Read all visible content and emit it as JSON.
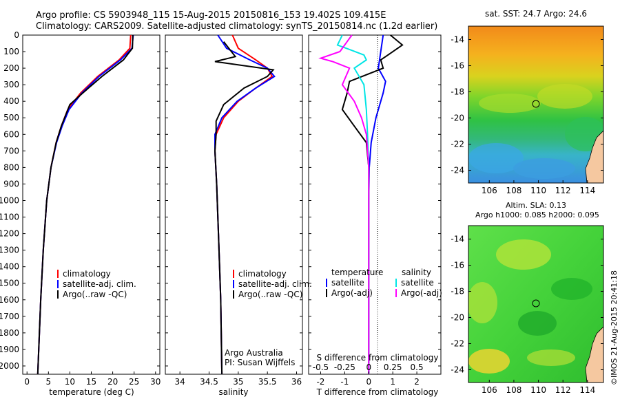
{
  "header": {
    "line1": "Argo profile: CS 5903948_115 15-Aug-2015 20150816_153 19.402S 109.415E",
    "line2": "Climatology: CARS2009. Satellite-adjusted climatology: synTS_20150814.nc (1.2d earlier)"
  },
  "colors": {
    "climatology": "#ff0000",
    "satellite": "#0000ff",
    "argo": "#000000",
    "sal_satellite": "#00e5e5",
    "sal_argo": "#ff00ff"
  },
  "depth_ticks": [
    "0",
    "100",
    "200",
    "300",
    "400",
    "500",
    "600",
    "700",
    "800",
    "900",
    "1000",
    "1100",
    "1200",
    "1300",
    "1400",
    "1500",
    "1600",
    "1700",
    "1800",
    "1900",
    "2000"
  ],
  "panels": {
    "temperature": {
      "xlabel": "temperature (deg C)",
      "ticks": [
        "0",
        "5",
        "10",
        "15",
        "20",
        "25",
        "30"
      ],
      "legend": [
        "climatology",
        "satellite-adj. clim.",
        "Argo(..raw -QC)"
      ]
    },
    "salinity": {
      "xlabel": "salinity",
      "ticks": [
        "34",
        "34.5",
        "35",
        "35.5",
        "36"
      ],
      "legend": [
        "climatology",
        "satellite-adj. clim.",
        "Argo(..raw -QC)"
      ],
      "credit1": "Argo Australia",
      "credit2": "PI: Susan Wijffels"
    },
    "difference": {
      "xlabel": "T difference from climatology",
      "slabel": "S difference from climatology",
      "t_ticks": [
        "-2",
        "-1",
        "0",
        "1",
        "2"
      ],
      "s_ticks": [
        "-0.5",
        "-0.25",
        "0",
        "0.25",
        "0.5"
      ],
      "legend_temp_title": "temperature",
      "legend_sal_title": "salinity",
      "legend_temp": [
        "satellite",
        "Argo(-adj)"
      ],
      "legend_sal": [
        "satellite",
        "Argo(-adj)"
      ]
    }
  },
  "maps": {
    "sst_title": "sat. SST: 24.7  Argo: 24.6",
    "sla_title1": "Altim. SLA: 0.13",
    "sla_title2": "Argo h1000: 0.085  h2000: 0.095",
    "yticks": [
      "-14",
      "-16",
      "-18",
      "-20",
      "-22",
      "-24"
    ],
    "xticks": [
      "106",
      "108",
      "110",
      "112",
      "114"
    ]
  },
  "watermark": "©IMOS 21-Aug-2015 20:41:18",
  "chart_data": [
    {
      "type": "line",
      "title": "",
      "xlabel": "temperature (deg C)",
      "ylabel": "",
      "xlim": [
        -1,
        31
      ],
      "ylim": [
        2050,
        0
      ],
      "series": [
        {
          "name": "climatology",
          "depth": [
            0,
            80,
            150,
            250,
            350,
            450,
            550,
            650,
            800,
            1000,
            1300,
            1600,
            2050
          ],
          "values": [
            24.2,
            24.0,
            21.5,
            16.5,
            12.5,
            9.5,
            8.0,
            6.8,
            5.6,
            4.6,
            3.8,
            3.2,
            2.5
          ]
        },
        {
          "name": "satellite-adj. clim.",
          "depth": [
            0,
            80,
            150,
            250,
            350,
            450,
            550,
            650,
            800,
            1000,
            1300,
            1600,
            2050
          ],
          "values": [
            24.8,
            24.5,
            21.8,
            16.8,
            12.8,
            9.8,
            8.2,
            6.9,
            5.6,
            4.6,
            3.8,
            3.2,
            2.5
          ]
        },
        {
          "name": "Argo(..raw -QC)",
          "depth": [
            0,
            80,
            150,
            250,
            350,
            420,
            550,
            650,
            800,
            1000,
            1300,
            1600,
            2050
          ],
          "values": [
            24.7,
            24.6,
            22.5,
            17.5,
            13.0,
            10.0,
            8.0,
            6.8,
            5.6,
            4.6,
            3.8,
            3.2,
            2.5
          ]
        }
      ]
    },
    {
      "type": "line",
      "title": "",
      "xlabel": "salinity",
      "ylabel": "",
      "xlim": [
        33.75,
        36.1
      ],
      "ylim": [
        2050,
        0
      ],
      "series": [
        {
          "name": "climatology",
          "depth": [
            0,
            80,
            150,
            200,
            250,
            320,
            400,
            500,
            600,
            700,
            900,
            1200,
            1600,
            2050
          ],
          "values": [
            34.9,
            35.0,
            35.3,
            35.5,
            35.58,
            35.3,
            35.0,
            34.75,
            34.62,
            34.6,
            34.63,
            34.66,
            34.7,
            34.72
          ]
        },
        {
          "name": "satellite-adj. clim.",
          "depth": [
            0,
            80,
            150,
            200,
            250,
            320,
            400,
            500,
            600,
            700,
            900,
            1200,
            1600,
            2050
          ],
          "values": [
            34.65,
            34.8,
            35.2,
            35.5,
            35.62,
            35.3,
            34.98,
            34.72,
            34.6,
            34.6,
            34.63,
            34.66,
            34.7,
            34.72
          ]
        },
        {
          "name": "Argo(..raw -QC)",
          "depth": [
            40,
            130,
            160,
            210,
            250,
            320,
            420,
            520,
            600,
            700,
            900,
            1200,
            1600,
            2050
          ],
          "values": [
            34.75,
            34.95,
            34.6,
            35.6,
            35.5,
            35.1,
            34.75,
            34.62,
            34.62,
            34.6,
            34.63,
            34.66,
            34.7,
            34.72
          ]
        }
      ]
    },
    {
      "type": "line",
      "title": "",
      "xlabel": "T difference from climatology",
      "ylabel": "",
      "xlim": [
        -2.5,
        3
      ],
      "ylim": [
        2050,
        0
      ],
      "series": [
        {
          "name": "temperature satellite",
          "depth": [
            0,
            100,
            200,
            280,
            350,
            500,
            650,
            800,
            1000,
            1500,
            2050
          ],
          "values": [
            0.6,
            0.5,
            0.4,
            0.7,
            0.6,
            0.3,
            0.1,
            0.02,
            0.0,
            0.0,
            0.0
          ]
        },
        {
          "name": "temperature Argo(-adj)",
          "depth": [
            0,
            60,
            120,
            150,
            200,
            280,
            350,
            450,
            550,
            650,
            800,
            1000,
            1500,
            2050
          ],
          "values": [
            0.9,
            1.4,
            0.8,
            0.5,
            0.6,
            -0.8,
            -0.9,
            -1.1,
            -0.6,
            -0.1,
            0.0,
            0.0,
            0.0,
            0.0
          ]
        },
        {
          "name": "salinity satellite",
          "depth": [
            0,
            60,
            120,
            150,
            200,
            300,
            450,
            600,
            800,
            1200,
            2050
          ],
          "values": [
            -1.1,
            -1.3,
            -0.2,
            -0.1,
            -0.6,
            -0.2,
            -0.1,
            -0.05,
            0.0,
            0.0,
            0.0
          ]
        },
        {
          "name": "salinity Argo(-adj)",
          "depth": [
            0,
            100,
            140,
            160,
            200,
            300,
            400,
            500,
            600,
            800,
            1200,
            2050
          ],
          "values": [
            -0.7,
            -1.2,
            -2.0,
            -1.5,
            -0.8,
            -1.1,
            -0.6,
            -0.3,
            -0.1,
            0.0,
            0.0,
            0.0
          ]
        }
      ]
    }
  ]
}
